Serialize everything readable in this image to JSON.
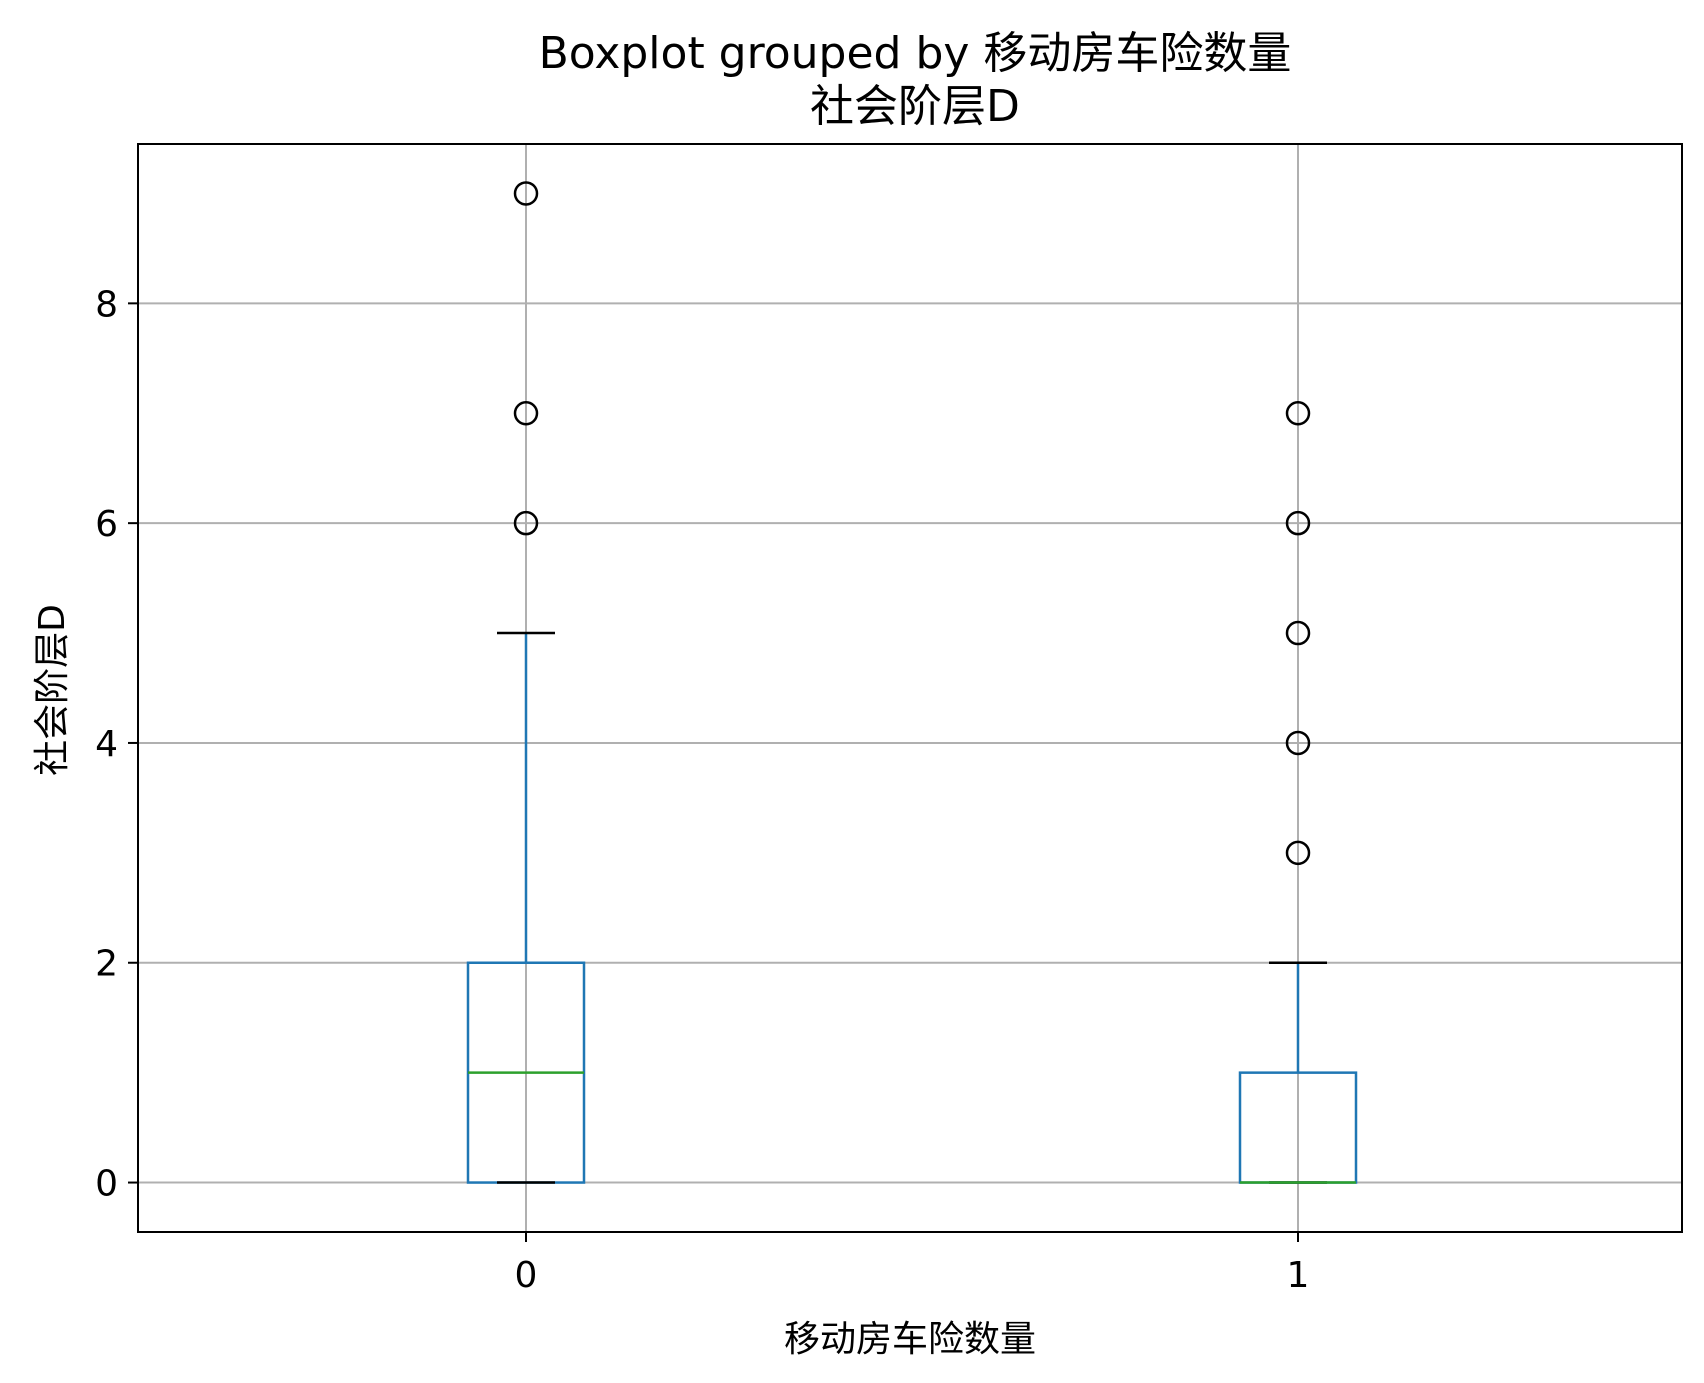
{
  "chart_data": {
    "type": "box",
    "title": "Boxplot grouped by 移动房车险数量",
    "subtitle": "社会阶层D",
    "xlabel": "移动房车险数量",
    "ylabel": "社会阶层D",
    "categories": [
      "0",
      "1"
    ],
    "ylim": [
      -0.45,
      9.45
    ],
    "yticks": [
      0,
      2,
      4,
      6,
      8
    ],
    "grid": true,
    "boxes": [
      {
        "category": "0",
        "whislo": 0,
        "q1": 0,
        "median": 1,
        "q3": 2,
        "whishi": 5,
        "fliers": [
          6,
          7,
          9
        ]
      },
      {
        "category": "1",
        "whislo": 0,
        "q1": 0,
        "median": 0,
        "q3": 1,
        "whishi": 2,
        "fliers": [
          3,
          4,
          5,
          6,
          7
        ]
      }
    ],
    "colors": {
      "box": "#1f77b4",
      "median": "#2ca02c",
      "whisker": "#1f77b4",
      "cap": "#000000",
      "flier": "#000000",
      "grid": "#b0b0b0",
      "frame": "#000000"
    }
  }
}
